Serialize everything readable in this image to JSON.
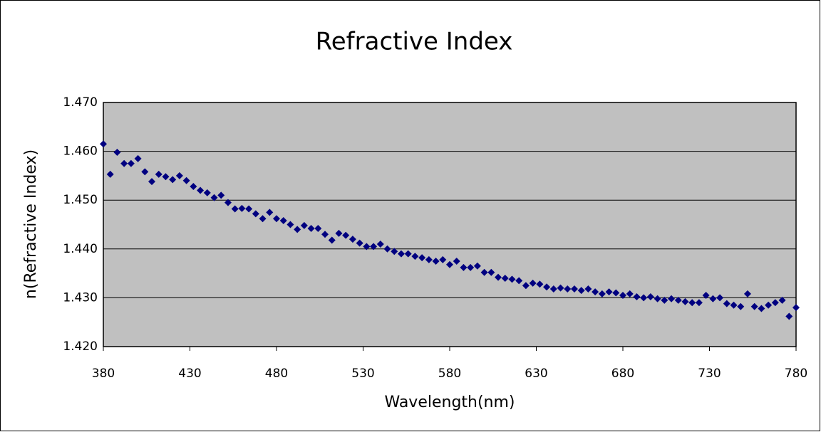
{
  "chart_data": {
    "type": "scatter",
    "title": "Refractive Index",
    "x_label": "Wavelength(nm)",
    "y_label": "n(Refractive Index)",
    "color": "#000080",
    "grid": true,
    "xlim": [
      380,
      780
    ],
    "xticks": [
      380,
      430,
      480,
      530,
      580,
      630,
      680,
      730,
      780
    ],
    "ylim": [
      1.42,
      1.47
    ],
    "yticks": [
      {
        "value": 1.42,
        "label": "1.420"
      },
      {
        "value": 1.43,
        "label": "1.430"
      },
      {
        "value": 1.44,
        "label": "1.440"
      },
      {
        "value": 1.45,
        "label": "1.450"
      },
      {
        "value": 1.46,
        "label": "1.460"
      },
      {
        "value": 1.47,
        "label": "1.470"
      }
    ],
    "x": [
      380,
      384,
      388,
      392,
      396,
      400,
      404,
      408,
      412,
      416,
      420,
      424,
      428,
      432,
      436,
      440,
      444,
      448,
      452,
      456,
      460,
      464,
      468,
      472,
      476,
      480,
      484,
      488,
      492,
      496,
      500,
      504,
      508,
      512,
      516,
      520,
      524,
      528,
      532,
      536,
      540,
      544,
      548,
      552,
      556,
      560,
      564,
      568,
      572,
      576,
      580,
      584,
      588,
      592,
      596,
      600,
      604,
      608,
      612,
      616,
      620,
      624,
      628,
      632,
      636,
      640,
      644,
      648,
      652,
      656,
      660,
      664,
      668,
      672,
      676,
      680,
      684,
      688,
      692,
      696,
      700,
      704,
      708,
      712,
      716,
      720,
      724,
      728,
      732,
      736,
      740,
      744,
      748,
      752,
      756,
      760,
      764,
      768,
      772,
      776,
      780
    ],
    "values": [
      1.4615,
      1.4553,
      1.4598,
      1.4575,
      1.4575,
      1.4585,
      1.4558,
      1.4538,
      1.4553,
      1.4548,
      1.4542,
      1.455,
      1.454,
      1.4528,
      1.452,
      1.4515,
      1.4505,
      1.451,
      1.4495,
      1.4482,
      1.4483,
      1.4482,
      1.4472,
      1.4462,
      1.4475,
      1.4462,
      1.4458,
      1.445,
      1.444,
      1.4448,
      1.4442,
      1.4442,
      1.443,
      1.4418,
      1.4432,
      1.4428,
      1.442,
      1.4412,
      1.4405,
      1.4405,
      1.441,
      1.44,
      1.4395,
      1.439,
      1.439,
      1.4385,
      1.4382,
      1.4378,
      1.4375,
      1.4378,
      1.4368,
      1.4375,
      1.4362,
      1.4362,
      1.4365,
      1.4352,
      1.4352,
      1.4342,
      1.434,
      1.4338,
      1.4335,
      1.4325,
      1.433,
      1.4328,
      1.4322,
      1.4318,
      1.432,
      1.4318,
      1.4318,
      1.4315,
      1.4318,
      1.4312,
      1.4308,
      1.4312,
      1.431,
      1.4305,
      1.4308,
      1.4302,
      1.43,
      1.4302,
      1.4298,
      1.4295,
      1.4298,
      1.4295,
      1.4292,
      1.429,
      1.429,
      1.4305,
      1.4298,
      1.43,
      1.4288,
      1.4285,
      1.4282,
      1.4308,
      1.4282,
      1.4278,
      1.4285,
      1.429,
      1.4295,
      1.4262,
      1.428
    ]
  }
}
